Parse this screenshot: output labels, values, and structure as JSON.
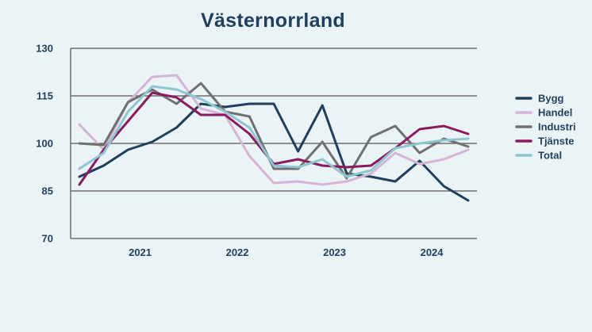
{
  "chart_data": {
    "type": "line",
    "title": "Västernorrland",
    "xlabel": "",
    "ylabel": "",
    "ylim": [
      70,
      130
    ],
    "yticks": [
      "70",
      "85",
      "100",
      "115",
      "130"
    ],
    "xtick_labels": [
      {
        "label": "2021",
        "x": 2.5
      },
      {
        "label": "2022",
        "x": 6.5
      },
      {
        "label": "2023",
        "x": 10.5
      },
      {
        "label": "2024",
        "x": 14.5
      }
    ],
    "x": [
      0,
      1,
      2,
      3,
      4,
      5,
      6,
      7,
      8,
      9,
      10,
      11,
      12,
      13,
      14,
      15,
      16
    ],
    "legend_position": "right",
    "grid": true,
    "series": [
      {
        "name": "Bygg",
        "color": "#1f3f5c",
        "values": [
          89.5,
          93,
          98,
          100.5,
          105,
          112.5,
          111.5,
          112.5,
          112.5,
          97.5,
          112,
          90.5,
          89.5,
          88,
          94.5,
          86.5,
          82
        ]
      },
      {
        "name": "Handel",
        "color": "#d6b4d6",
        "values": [
          106,
          98,
          113,
          121,
          121.5,
          111,
          109,
          96,
          87.5,
          88,
          87,
          88,
          90.5,
          97,
          93.5,
          95,
          98
        ]
      },
      {
        "name": "Industri",
        "color": "#707070",
        "values": [
          100,
          99.5,
          113,
          117,
          112.5,
          119,
          110,
          108.5,
          92,
          92,
          100.5,
          89,
          102,
          105.5,
          97,
          101.5,
          99
        ]
      },
      {
        "name": "Tjänste",
        "color": "#8b1a5e",
        "values": [
          87,
          98,
          107,
          116,
          114.5,
          109,
          109,
          103,
          93.5,
          95,
          93,
          92.5,
          93,
          98.5,
          104.5,
          105.5,
          103
        ]
      },
      {
        "name": "Total",
        "color": "#8cc7d1",
        "values": [
          92,
          97,
          110,
          118,
          117,
          114,
          110,
          105,
          93,
          92.5,
          95,
          89.5,
          91.5,
          98.5,
          100,
          101,
          101.5
        ]
      }
    ]
  }
}
